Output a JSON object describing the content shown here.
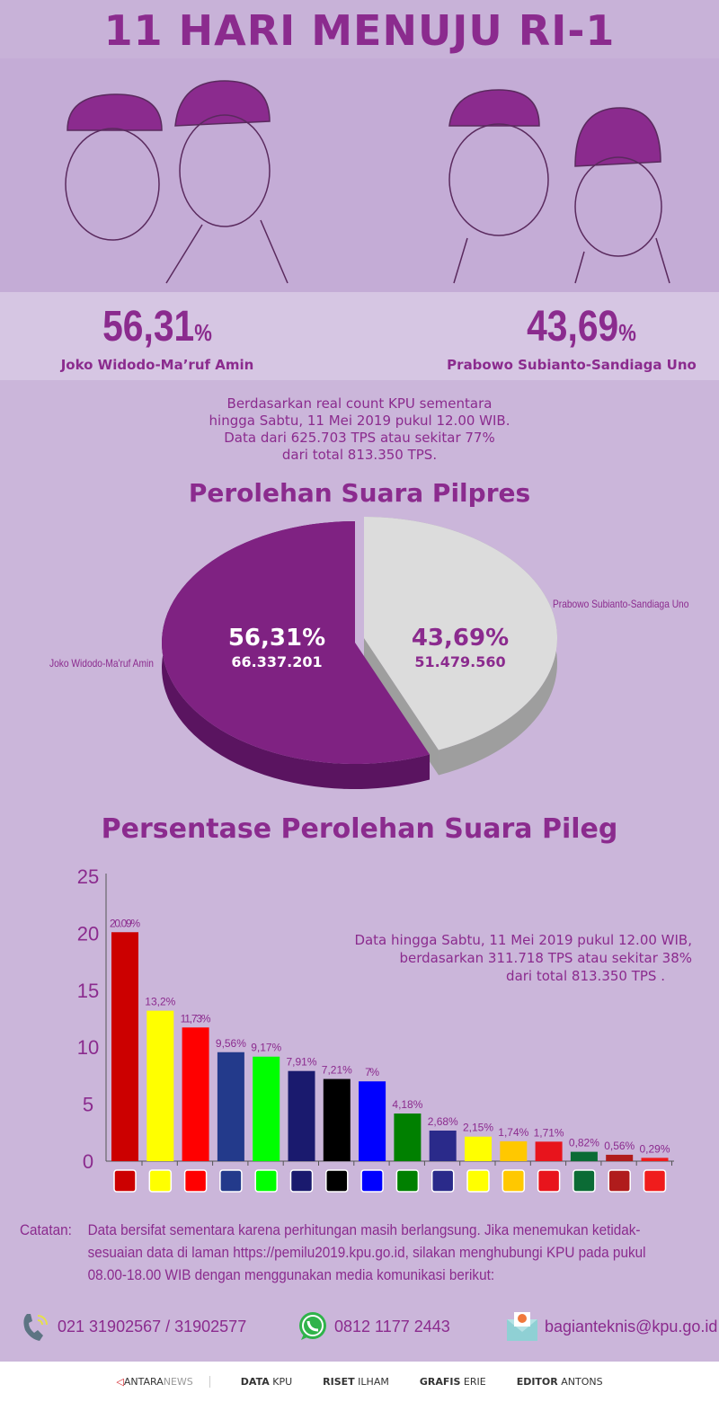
{
  "title": "11 HARI MENUJU RI-1",
  "candidates": [
    {
      "percent": "56,31",
      "percent_sign": "%",
      "name": "Joko Widodo-Ma’ruf Amin",
      "color": "#8b2b8e"
    },
    {
      "percent": "43,69",
      "percent_sign": "%",
      "name": "Prabowo Subianto-Sandiaga Uno",
      "color": "#dddddd"
    }
  ],
  "intro": [
    "Berdasarkan real count KPU sementara",
    "hingga Sabtu, 11 Mei 2019 pukul 12.00 WIB.",
    "Data dari 625.703 TPS atau sekitar 77%",
    "dari total 813.350 TPS."
  ],
  "chart_data": [
    {
      "type": "pie",
      "title": "Perolehan Suara Pilpres",
      "slices": [
        {
          "name": "Joko Widodo-Ma'ruf Amin",
          "percent_label": "56,31%",
          "votes_label": "66.337.201",
          "value": 56.31,
          "color": "#7f2282"
        },
        {
          "name": "Prabowo Subianto-Sandiaga Uno",
          "percent_label": "43,69%",
          "votes_label": "51.479.560",
          "value": 43.69,
          "color": "#dcdcdc"
        }
      ]
    },
    {
      "type": "bar",
      "title": "Persentase Perolehan Suara Pileg",
      "ylim": [
        0,
        25
      ],
      "yticks": [
        "0",
        "5",
        "10",
        "15",
        "20",
        "25"
      ],
      "values": [
        20.09,
        13.2,
        11.73,
        9.56,
        9.17,
        7.91,
        7.21,
        7,
        4.18,
        2.68,
        2.15,
        1.74,
        1.71,
        0.82,
        0.56,
        0.29
      ],
      "labels": [
        "20.09%",
        "13,2%",
        "11,73%",
        "9,56%",
        "9,17%",
        "7,91%",
        "7,21%",
        "7%",
        "4,18%",
        "2,68%",
        "2,15%",
        "1,74%",
        "1,71%",
        "0,82%",
        "0,56%",
        "0,29%"
      ],
      "colors": [
        "#cc0000",
        "#ffff00",
        "#ff0000",
        "#233a8b",
        "#00ff00",
        "#1a1a6e",
        "#000000",
        "#0000ff",
        "#008000",
        "#2a2a8a",
        "#ffff00",
        "#ffc800",
        "#e8141c",
        "#0b6b35",
        "#b01c1c",
        "#f01c1c"
      ],
      "logos": [
        "pdip-logo",
        "golkar-logo",
        "gerindra-logo",
        "nasdem-logo",
        "pkb-logo",
        "demokrat-logo",
        "pks-logo",
        "pan-logo",
        "ppp-logo",
        "perindo-logo",
        "berkarya-logo",
        "hanura-logo",
        "psi-logo",
        "pbb-logo",
        "garuda-logo",
        "pkpi-logo"
      ],
      "annotation": [
        "Data hingga Sabtu, 11 Mei 2019 pukul 12.00 WIB,",
        "berdasarkan 311.718 TPS atau sekitar 38%",
        "dari total 813.350 TPS ."
      ]
    }
  ],
  "note": {
    "label": "Catatan:",
    "text": "Data bersifat sementara karena perhitungan masih berlangsung. Jika menemukan ketidak-sesuaian data di laman https://pemilu2019.kpu.go.id, silakan menghubungi KPU pada pukul 08.00-18.00 WIB dengan menggunakan media komunikasi berikut:"
  },
  "contacts": {
    "phone": "021 31902567 / 31902577",
    "whatsapp": "0812 1177 2443",
    "email": "bagianteknis@kpu.go.id"
  },
  "footer": {
    "brand_a": "ANTARA",
    "brand_b": "NEWS",
    "credits": [
      [
        "DATA",
        "KPU"
      ],
      [
        "RISET",
        "ILHAM"
      ],
      [
        "GRAFIS",
        "ERIE"
      ],
      [
        "EDITOR",
        "ANTONS"
      ]
    ]
  }
}
